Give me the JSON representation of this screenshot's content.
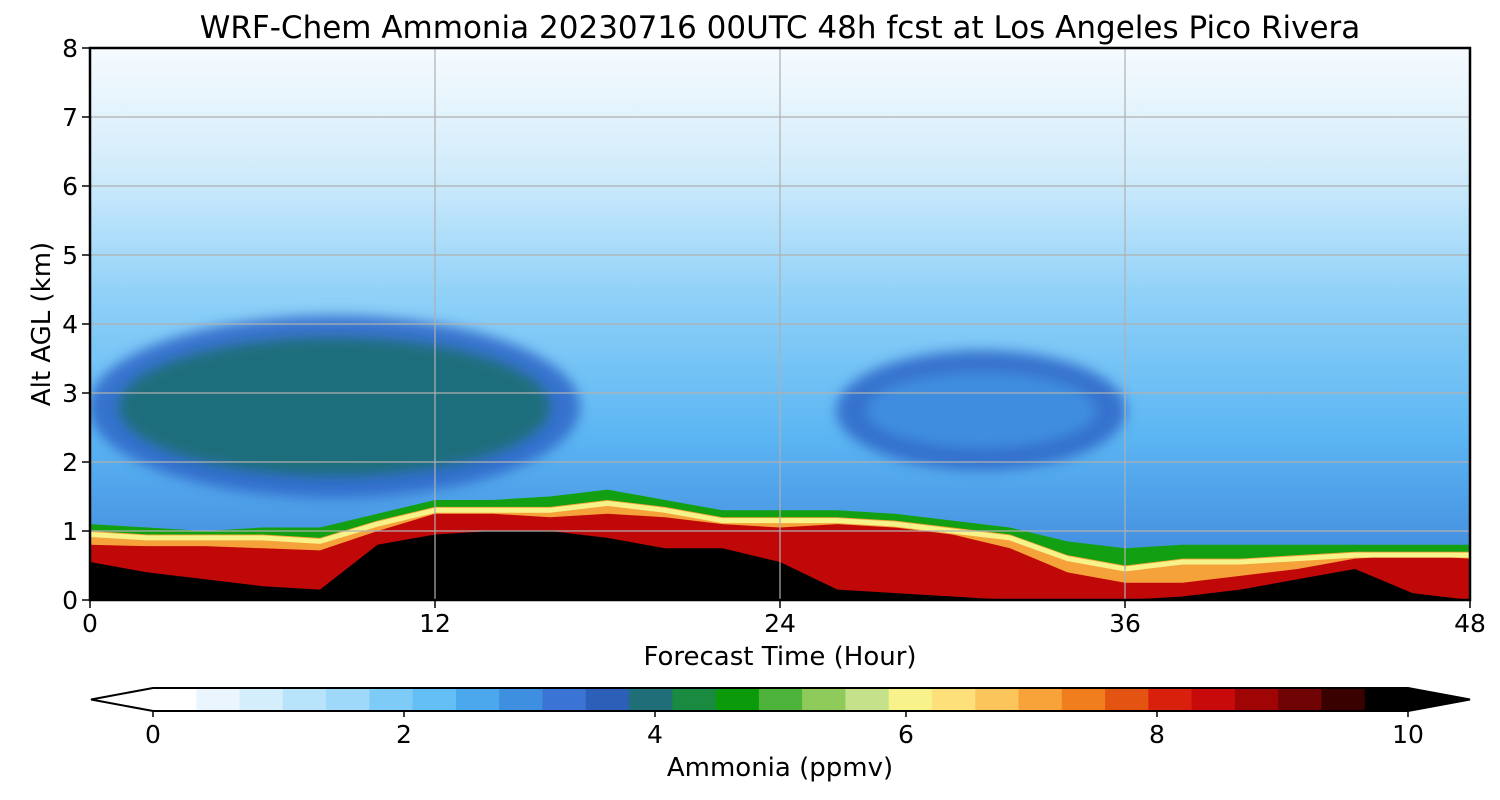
{
  "chart_data": {
    "type": "heatmap",
    "title": "WRF-Chem Ammonia  20230716 00UTC 48h fcst at Los Angeles Pico Rivera",
    "xlabel": "Forecast Time (Hour)",
    "ylabel": "Alt AGL (km)",
    "xlim": [
      0,
      48
    ],
    "ylim": [
      0,
      8
    ],
    "xticks": [
      "0",
      "12",
      "24",
      "36",
      "48"
    ],
    "yticks": [
      "0",
      "1",
      "2",
      "3",
      "4",
      "5",
      "6",
      "7",
      "8"
    ],
    "grid": true,
    "colorbar": {
      "label": "Ammonia  (ppmv)",
      "range": [
        0,
        10
      ],
      "ticks": [
        "0",
        "2",
        "4",
        "6",
        "8",
        "10"
      ],
      "extend": "both",
      "colors": [
        "#ffffff",
        "#eaf5fd",
        "#d4eefc",
        "#b7e4fb",
        "#9ed9f9",
        "#7fcbf7",
        "#63bff5",
        "#4ca8ec",
        "#3f8fe0",
        "#3a74d4",
        "#2b5fb8",
        "#1f6e78",
        "#1a8a40",
        "#0a9a0a",
        "#4db33a",
        "#8fcb5a",
        "#c5e18a",
        "#f7f38a",
        "#fde07a",
        "#fbc55c",
        "#f8a23a",
        "#f07e1c",
        "#e35412",
        "#d8200c",
        "#c80a0a",
        "#a00505",
        "#700303",
        "#3a0101",
        "#000000"
      ]
    },
    "band_levels": [
      9.5,
      8,
      6,
      5,
      4,
      3.5,
      3,
      2.5,
      2,
      1.5
    ],
    "band_colors": [
      "#000000",
      "#bf0a0a",
      "#f89c2c",
      "#f6f08a",
      "#0d990d",
      "#3fae30",
      "#2f6fcf",
      "#4aa5ec",
      "#62bef6",
      "#9fdaf9"
    ],
    "series": [
      {
        "x": [
          0,
          2,
          4,
          6,
          8,
          10,
          12,
          14,
          16,
          18,
          20,
          22,
          24,
          26,
          28,
          30,
          32,
          34,
          36,
          38,
          40,
          42,
          44,
          46,
          48
        ],
        "y": [
          0.55,
          0.4,
          0.3,
          0.2,
          0.15,
          0.8,
          0.95,
          1.0,
          1.0,
          0.9,
          0.75,
          0.75,
          0.55,
          0.15,
          0.1,
          0.05,
          0,
          0,
          0,
          0.05,
          0.15,
          0.3,
          0.45,
          0.1,
          0
        ]
      },
      {
        "x": [
          0,
          2,
          4,
          6,
          8,
          10,
          12,
          14,
          16,
          18,
          20,
          22,
          24,
          26,
          28,
          30,
          32,
          34,
          36,
          38,
          40,
          42,
          44,
          46,
          48
        ],
        "y": [
          0.8,
          0.78,
          0.78,
          0.75,
          0.72,
          1.0,
          1.25,
          1.25,
          1.2,
          1.25,
          1.2,
          1.1,
          1.05,
          1.1,
          1.05,
          0.95,
          0.75,
          0.4,
          0.25,
          0.25,
          0.35,
          0.45,
          0.6,
          0.65,
          0.6
        ]
      },
      {
        "x": [
          0,
          2,
          4,
          6,
          8,
          10,
          12,
          14,
          16,
          18,
          20,
          22,
          24,
          26,
          28,
          30,
          32,
          34,
          36,
          38,
          40,
          42,
          44,
          46,
          48
        ],
        "y": [
          1.0,
          0.95,
          0.95,
          0.95,
          0.9,
          1.15,
          1.35,
          1.35,
          1.35,
          1.45,
          1.35,
          1.2,
          1.2,
          1.2,
          1.15,
          1.05,
          0.95,
          0.65,
          0.5,
          0.6,
          0.6,
          0.65,
          0.7,
          0.7,
          0.7
        ]
      },
      {
        "x": [
          0,
          2,
          4,
          6,
          8,
          10,
          12,
          14,
          16,
          18,
          20,
          22,
          24,
          26,
          28,
          30,
          32,
          34,
          36,
          38,
          40,
          42,
          44,
          46,
          48
        ],
        "y": [
          1.1,
          1.05,
          1.0,
          1.05,
          1.05,
          1.25,
          1.45,
          1.45,
          1.5,
          1.6,
          1.45,
          1.3,
          1.3,
          1.3,
          1.25,
          1.15,
          1.05,
          0.85,
          0.75,
          0.8,
          0.8,
          0.8,
          0.8,
          0.8,
          0.8
        ]
      }
    ],
    "blobs": [
      {
        "name": "green-aloft",
        "x": [
          1,
          16
        ],
        "y": [
          1.8,
          3.8
        ],
        "value": 4.0
      },
      {
        "name": "blue-aloft",
        "x": [
          27,
          35
        ],
        "y": [
          2.2,
          3.3
        ],
        "value": 3.0
      }
    ]
  }
}
